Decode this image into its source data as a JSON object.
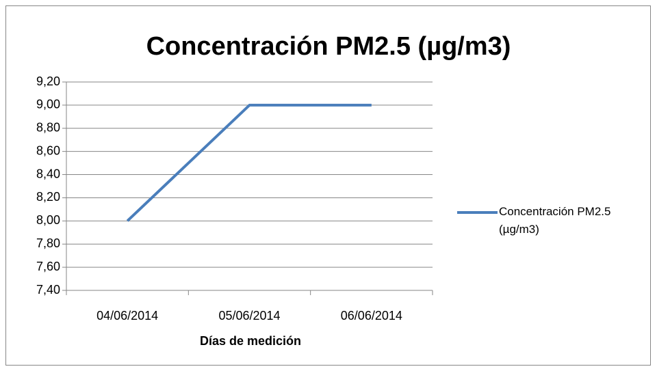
{
  "chart_data": {
    "type": "line",
    "title": "Concentración PM2.5 (µg/m3)",
    "x_label": "Días de medición",
    "categories": [
      "04/06/2014",
      "05/06/2014",
      "06/06/2014"
    ],
    "series": [
      {
        "name": "Concentración PM2.5 (µg/m3)",
        "color": "#4a7ebb",
        "values": [
          8,
          9,
          9
        ]
      }
    ],
    "ylim": [
      7.4,
      9.2
    ],
    "yticks": [
      {
        "value": 7.4,
        "label": "7,40"
      },
      {
        "value": 7.6,
        "label": "7,60"
      },
      {
        "value": 7.8,
        "label": "7,80"
      },
      {
        "value": 8.0,
        "label": "8,00"
      },
      {
        "value": 8.2,
        "label": "8,20"
      },
      {
        "value": 8.4,
        "label": "8,40"
      },
      {
        "value": 8.6,
        "label": "8,60"
      },
      {
        "value": 8.8,
        "label": "8,80"
      },
      {
        "value": 9.0,
        "label": "9,00"
      },
      {
        "value": 9.2,
        "label": "9,20"
      }
    ],
    "grid": true,
    "legend": "right"
  }
}
